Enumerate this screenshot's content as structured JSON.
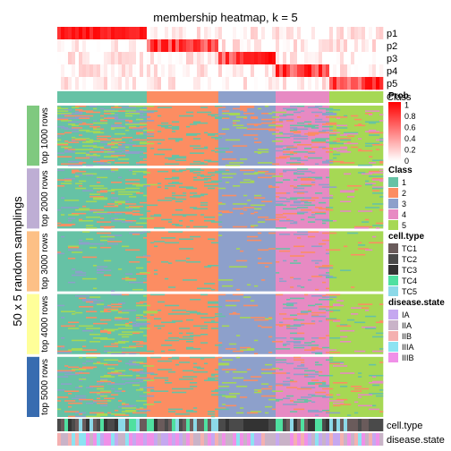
{
  "chart_data": {
    "type": "heatmap",
    "title": "membership heatmap, k = 5",
    "ylabel": "50 x 5 random samplings",
    "membership_rows": [
      "p1",
      "p2",
      "p3",
      "p4",
      "p5"
    ],
    "column_class_order": [
      1,
      2,
      3,
      4,
      5
    ],
    "column_class_widths": [
      25,
      20,
      16,
      15,
      15
    ],
    "row_groups": [
      "top 1000 rows",
      "top 2000 rows",
      "top 3000 rows",
      "top 4000 rows",
      "top 5000 rows"
    ],
    "row_group_colors": [
      "#7FC97F",
      "#BEAED4",
      "#FDC086",
      "#FFFF99",
      "#386CB0"
    ],
    "bottom_annotations": [
      "cell.type",
      "disease.state"
    ],
    "legends": {
      "prob": {
        "title": "Prob",
        "ticks": [
          "1",
          "0.8",
          "0.6",
          "0.4",
          "0.2",
          "0"
        ],
        "range": [
          0,
          1
        ],
        "colors": [
          "#FFFFFF",
          "#FF0000"
        ]
      },
      "class": {
        "title": "Class",
        "labels": [
          "1",
          "2",
          "3",
          "4",
          "5"
        ],
        "colors": [
          "#66C2A5",
          "#FC8D62",
          "#8DA0CB",
          "#E78AC3",
          "#A6D854"
        ]
      },
      "cell_type": {
        "title": "cell.type",
        "labels": [
          "TC1",
          "TC2",
          "TC3",
          "TC4",
          "TC5"
        ],
        "colors": [
          "#6A5B5B",
          "#4A4A4A",
          "#333333",
          "#4FE0A0",
          "#8CD9E8"
        ]
      },
      "disease_state": {
        "title": "disease.state",
        "labels": [
          "IA",
          "IIA",
          "IIB",
          "IIIA",
          "IIIB"
        ],
        "colors": [
          "#C5A8F0",
          "#C9B3C8",
          "#F4B0B0",
          "#8CE3F2",
          "#F090E8"
        ]
      }
    }
  }
}
